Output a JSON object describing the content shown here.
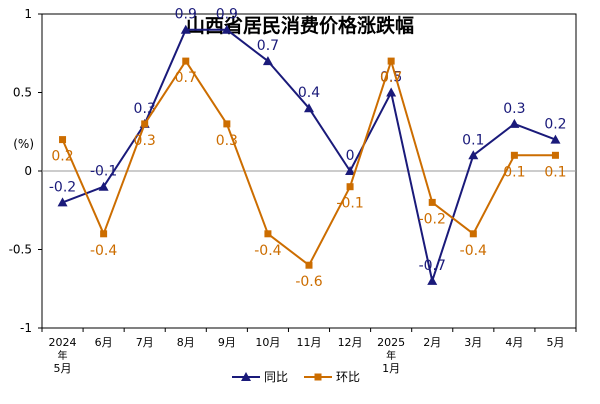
{
  "chart_data": {
    "type": "line",
    "title": "山西省居民消费价格涨跌幅",
    "ylabel": "(%)",
    "xlabel": "",
    "ylim": [
      -1,
      1
    ],
    "yticks": [
      -1,
      -0.5,
      0,
      0.5,
      1
    ],
    "ytick_labels": [
      "-1",
      "-0.5",
      "0",
      "0.5",
      "1"
    ],
    "categories": [
      [
        "2024",
        "年",
        "5月"
      ],
      [
        "6月"
      ],
      [
        "7月"
      ],
      [
        "8月"
      ],
      [
        "9月"
      ],
      [
        "10月"
      ],
      [
        "11月"
      ],
      [
        "12月"
      ],
      [
        "2025",
        "年",
        "1月"
      ],
      [
        "2月"
      ],
      [
        "3月"
      ],
      [
        "4月"
      ],
      [
        "5月"
      ]
    ],
    "series": [
      {
        "name": "同比",
        "color": "#1a1a7a",
        "marker": "triangle",
        "label_position": "above",
        "values": [
          -0.2,
          -0.1,
          0.3,
          0.9,
          0.9,
          0.7,
          0.4,
          0,
          0.5,
          -0.7,
          0.1,
          0.3,
          0.2
        ],
        "labels": [
          "-0.2",
          "-0.1",
          "0.3",
          "0.9",
          "0.9",
          "0.7",
          "0.4",
          "0",
          "0.5",
          "-0.7",
          "0.1",
          "0.3",
          "0.2"
        ]
      },
      {
        "name": "环比",
        "color": "#cc6d00",
        "marker": "square",
        "label_position": "below",
        "values": [
          0.2,
          -0.4,
          0.3,
          0.7,
          0.3,
          -0.4,
          -0.6,
          -0.1,
          0.7,
          -0.2,
          -0.4,
          0.1,
          0.1
        ],
        "labels": [
          "0.2",
          "-0.4",
          "0.3",
          "0.7",
          "0.3",
          "-0.4",
          "-0.6",
          "-0.1",
          "0.7",
          "-0.2",
          "-0.4",
          "0.1",
          "0.1"
        ]
      }
    ],
    "grid": false,
    "zero_line": true,
    "legend_position": "bottom-center"
  }
}
